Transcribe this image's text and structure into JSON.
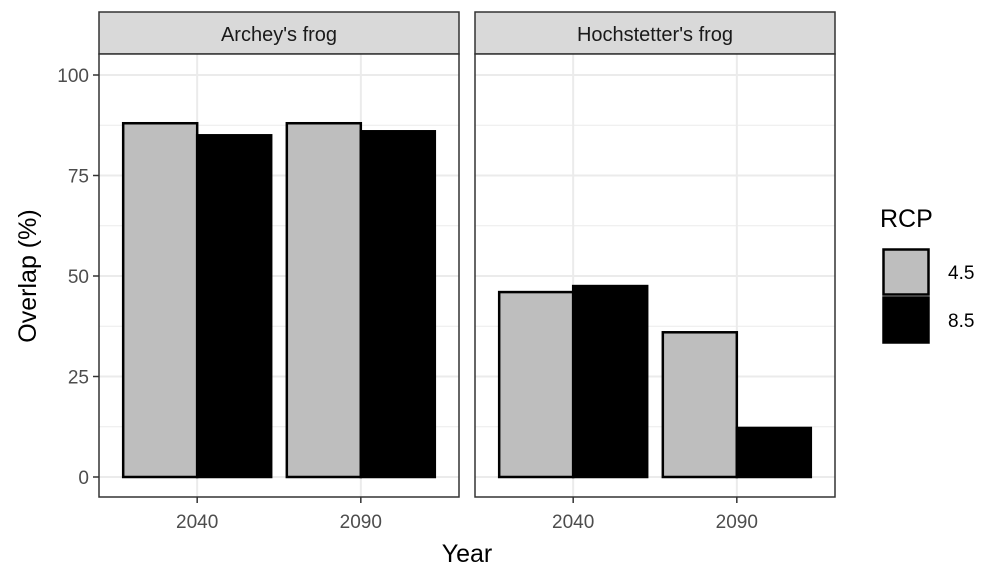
{
  "chart_data": {
    "type": "bar",
    "xlabel": "Year",
    "ylabel": "Overlap (%)",
    "ylim": [
      0,
      110
    ],
    "yticks": [
      0,
      25,
      50,
      75,
      100
    ],
    "categories": [
      "2040",
      "2090"
    ],
    "grid": true,
    "legend": {
      "title": "RCP",
      "placement": "right",
      "entries": [
        {
          "label": "4.5",
          "color": "#bebebe"
        },
        {
          "label": "8.5",
          "color": "#000000"
        }
      ]
    },
    "panels": [
      {
        "title": "Archey's frog",
        "series": [
          {
            "name": "4.5",
            "values": [
              88,
              88
            ]
          },
          {
            "name": "8.5",
            "values": [
              85,
              86
            ]
          }
        ]
      },
      {
        "title": "Hochstetter's frog",
        "series": [
          {
            "name": "4.5",
            "values": [
              46,
              36
            ]
          },
          {
            "name": "8.5",
            "values": [
              47.5,
              12.2
            ]
          }
        ]
      }
    ]
  }
}
